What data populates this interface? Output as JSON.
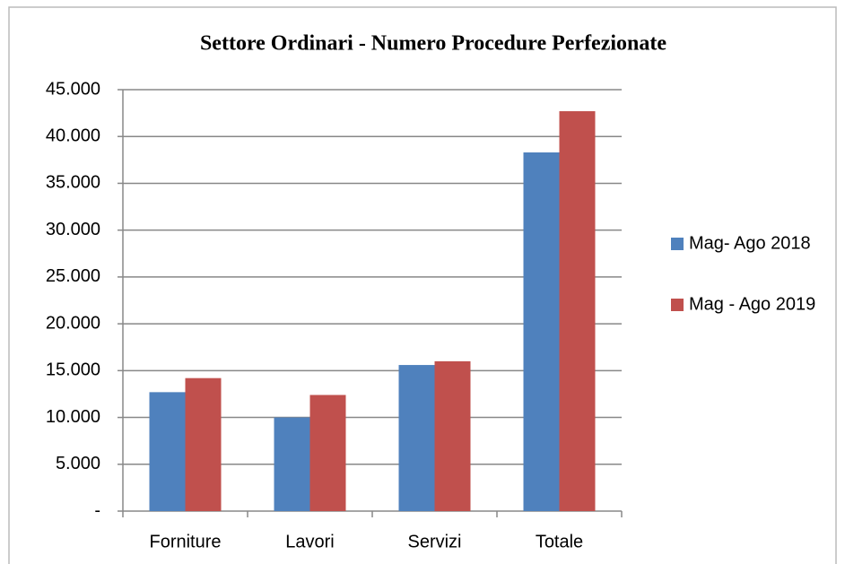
{
  "chart_data": {
    "type": "bar",
    "title": "Settore Ordinari - Numero Procedure Perfezionate",
    "categories": [
      "Forniture",
      "Lavori",
      "Servizi",
      "Totale"
    ],
    "series": [
      {
        "name": "Mag- Ago 2018",
        "color": "#4f81bd",
        "values": [
          12700,
          10000,
          15600,
          38300
        ]
      },
      {
        "name": "Mag - Ago 2019",
        "color": "#c0504d",
        "values": [
          14200,
          12400,
          16000,
          42700
        ]
      }
    ],
    "ylim": [
      0,
      45000
    ],
    "yticks": [
      {
        "value": 0,
        "label": "-"
      },
      {
        "value": 5000,
        "label": "5.000"
      },
      {
        "value": 10000,
        "label": "10.000"
      },
      {
        "value": 15000,
        "label": "15.000"
      },
      {
        "value": 20000,
        "label": "20.000"
      },
      {
        "value": 25000,
        "label": "25.000"
      },
      {
        "value": 30000,
        "label": "30.000"
      },
      {
        "value": 35000,
        "label": "35.000"
      },
      {
        "value": 40000,
        "label": "40.000"
      },
      {
        "value": 45000,
        "label": "45.000"
      }
    ],
    "grid": true,
    "legend": "right"
  }
}
